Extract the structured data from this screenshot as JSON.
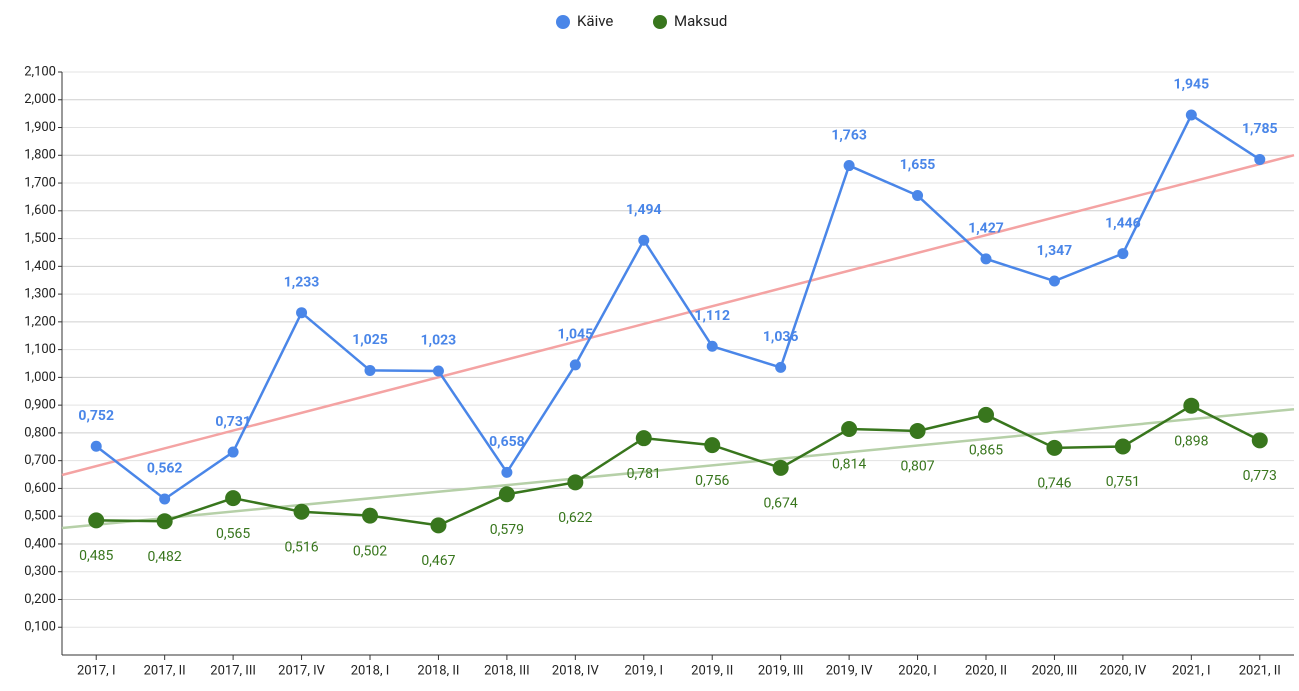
{
  "chart_data": {
    "type": "line",
    "categories": [
      "2017, I",
      "2017, II",
      "2017, III",
      "2017, IV",
      "2018, I",
      "2018, II",
      "2018, III",
      "2018, IV",
      "2019, I",
      "2019, II",
      "2019, III",
      "2019, IV",
      "2020, I",
      "2020, II",
      "2020, III",
      "2020, IV",
      "2021, I",
      "2021, II"
    ],
    "series": [
      {
        "name": "Käive",
        "color": "#4a86e8",
        "trendline": true,
        "trend_color": "#f4a3a3",
        "values": [
          0.752,
          0.562,
          0.731,
          1.233,
          1.025,
          1.023,
          0.658,
          1.045,
          1.494,
          1.112,
          1.036,
          1.763,
          1.655,
          1.427,
          1.347,
          1.446,
          1.945,
          1.785
        ],
        "value_labels": [
          "0,752",
          "0,562",
          "0,731",
          "1,233",
          "1,025",
          "1,023",
          "0,658",
          "1,045",
          "1,494",
          "1,112",
          "1,036",
          "1,763",
          "1,655",
          "1,427",
          "1,347",
          "1,446",
          "1,945",
          "1,785"
        ]
      },
      {
        "name": "Maksud",
        "color": "#38761d",
        "trendline": true,
        "trend_color": "#b6d0a8",
        "values": [
          0.485,
          0.482,
          0.565,
          0.516,
          0.502,
          0.467,
          0.579,
          0.622,
          0.781,
          0.756,
          0.674,
          0.814,
          0.807,
          0.865,
          0.746,
          0.751,
          0.898,
          0.773
        ],
        "value_labels": [
          "0,485",
          "0,482",
          "0,565",
          "0,516",
          "0,502",
          "0,467",
          "0,579",
          "0,622",
          "0,781",
          "0,756",
          "0,674",
          "0,814",
          "0,807",
          "0,865",
          "0,746",
          "0,751",
          "0,898",
          "0,773"
        ]
      }
    ],
    "ylim": [
      0,
      2.1
    ],
    "yticks": [
      {
        "value": 0.1,
        "label": "0,100"
      },
      {
        "value": 0.2,
        "label": "0,200"
      },
      {
        "value": 0.3,
        "label": "0,300"
      },
      {
        "value": 0.4,
        "label": "0,400"
      },
      {
        "value": 0.5,
        "label": "0,500"
      },
      {
        "value": 0.6,
        "label": "0,600"
      },
      {
        "value": 0.7,
        "label": "0,700"
      },
      {
        "value": 0.8,
        "label": "0,800"
      },
      {
        "value": 0.9,
        "label": "0,900"
      },
      {
        "value": 1.0,
        "label": "1,000"
      },
      {
        "value": 1.1,
        "label": "1,100"
      },
      {
        "value": 1.2,
        "label": "1,200"
      },
      {
        "value": 1.3,
        "label": "1,300"
      },
      {
        "value": 1.4,
        "label": "1,400"
      },
      {
        "value": 1.5,
        "label": "1,500"
      },
      {
        "value": 1.6,
        "label": "1,600"
      },
      {
        "value": 1.7,
        "label": "1,700"
      },
      {
        "value": 1.8,
        "label": "1,800"
      },
      {
        "value": 1.9,
        "label": "1,900"
      },
      {
        "value": 2.0,
        "label": "2,000"
      },
      {
        "value": 2.1,
        "label": "2,100"
      }
    ],
    "grid": true,
    "legend": "top"
  }
}
